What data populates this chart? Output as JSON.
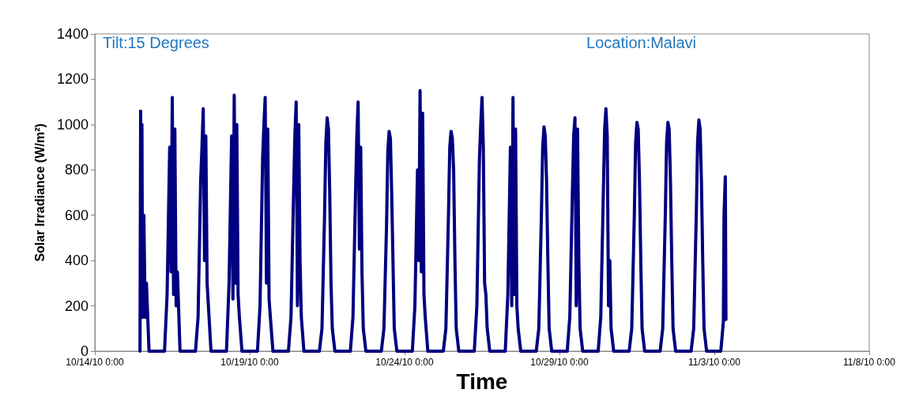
{
  "chart_data": {
    "type": "line",
    "xlabel": "Time",
    "ylabel": "Solar Irradiance (W/m²)",
    "annotations": [
      "Tilt:15 Degrees",
      "Location:Malavi"
    ],
    "xlim": [
      "--10-14T00:00",
      "--11-08T00:00"
    ],
    "xticks": [
      {
        "value": "--10-14T00:00",
        "label": "10/14/10 0:00"
      },
      {
        "value": "--10-19T00:00",
        "label": "10/19/10 0:00"
      },
      {
        "value": "--10-24T00:00",
        "label": "10/24/10 0:00"
      },
      {
        "value": "--10-29T00:00",
        "label": "10/29/10 0:00"
      },
      {
        "value": "--11-03T00:00",
        "label": "11/3/10 0:00"
      },
      {
        "value": "--11-08T00:00",
        "label": "11/8/10 0:00"
      }
    ],
    "ylim": [
      0,
      1400
    ],
    "yticks": [
      0,
      200,
      400,
      600,
      800,
      1000,
      1200,
      1400
    ],
    "grid": false,
    "marker": "none",
    "line_style": "solid",
    "series": [
      {
        "color": "#000080",
        "x": [
          "--10-15T11:00",
          "--10-15T11:30",
          "--10-15T12:00",
          "--10-15T12:30",
          "--10-15T13:00",
          "--10-15T14:00",
          "--10-15T15:00",
          "--10-15T16:00",
          "--10-15T18:00",
          "--10-16T06:00",
          "--10-16T08:00",
          "--10-16T10:00",
          "--10-16T11:00",
          "--10-16T12:00",
          "--10-16T13:00",
          "--10-16T14:00",
          "--10-16T15:00",
          "--10-16T16:00",
          "--10-16T18:00",
          "--10-17T06:00",
          "--10-17T08:00",
          "--10-17T10:00",
          "--10-17T11:00",
          "--10-17T12:00",
          "--10-17T13:00",
          "--10-17T14:00",
          "--10-17T15:00",
          "--10-17T16:00",
          "--10-17T18:00",
          "--10-18T06:00",
          "--10-18T08:00",
          "--10-18T10:00",
          "--10-18T11:00",
          "--10-18T12:00",
          "--10-18T13:00",
          "--10-18T14:00",
          "--10-18T15:00",
          "--10-18T16:00",
          "--10-18T18:00",
          "--10-19T06:00",
          "--10-19T08:00",
          "--10-19T10:00",
          "--10-19T11:00",
          "--10-19T12:00",
          "--10-19T13:00",
          "--10-19T14:00",
          "--10-19T15:00",
          "--10-19T16:00",
          "--10-19T18:00",
          "--10-20T06:00",
          "--10-20T08:00",
          "--10-20T10:00",
          "--10-20T11:00",
          "--10-20T12:00",
          "--10-20T13:00",
          "--10-20T14:00",
          "--10-20T15:00",
          "--10-20T16:00",
          "--10-20T18:00",
          "--10-21T06:00",
          "--10-21T08:00",
          "--10-21T10:00",
          "--10-21T11:00",
          "--10-21T12:00",
          "--10-21T13:00",
          "--10-21T14:00",
          "--10-21T15:00",
          "--10-21T16:00",
          "--10-21T18:00",
          "--10-22T06:00",
          "--10-22T08:00",
          "--10-22T10:00",
          "--10-22T11:00",
          "--10-22T12:00",
          "--10-22T13:00",
          "--10-22T14:00",
          "--10-22T15:00",
          "--10-22T16:00",
          "--10-22T18:00",
          "--10-23T06:00",
          "--10-23T08:00",
          "--10-23T10:00",
          "--10-23T11:00",
          "--10-23T12:00",
          "--10-23T13:00",
          "--10-23T14:00",
          "--10-23T15:00",
          "--10-23T16:00",
          "--10-23T18:00",
          "--10-24T06:00",
          "--10-24T08:00",
          "--10-24T10:00",
          "--10-24T11:00",
          "--10-24T12:00",
          "--10-24T13:00",
          "--10-24T14:00",
          "--10-24T15:00",
          "--10-24T16:00",
          "--10-24T18:00",
          "--10-25T06:00",
          "--10-25T08:00",
          "--10-25T10:00",
          "--10-25T11:00",
          "--10-25T12:00",
          "--10-25T13:00",
          "--10-25T14:00",
          "--10-25T15:00",
          "--10-25T16:00",
          "--10-25T18:00",
          "--10-26T06:00",
          "--10-26T08:00",
          "--10-26T10:00",
          "--10-26T11:00",
          "--10-26T12:00",
          "--10-26T13:00",
          "--10-26T14:00",
          "--10-26T15:00",
          "--10-26T16:00",
          "--10-26T18:00",
          "--10-27T06:00",
          "--10-27T08:00",
          "--10-27T10:00",
          "--10-27T11:00",
          "--10-27T12:00",
          "--10-27T13:00",
          "--10-27T14:00",
          "--10-27T15:00",
          "--10-27T16:00",
          "--10-27T18:00",
          "--10-28T06:00",
          "--10-28T08:00",
          "--10-28T10:00",
          "--10-28T11:00",
          "--10-28T12:00",
          "--10-28T13:00",
          "--10-28T14:00",
          "--10-28T15:00",
          "--10-28T16:00",
          "--10-28T18:00",
          "--10-29T06:00",
          "--10-29T08:00",
          "--10-29T10:00",
          "--10-29T11:00",
          "--10-29T12:00",
          "--10-29T13:00",
          "--10-29T14:00",
          "--10-29T15:00",
          "--10-29T16:00",
          "--10-29T18:00",
          "--10-30T06:00",
          "--10-30T08:00",
          "--10-30T10:00",
          "--10-30T11:00",
          "--10-30T12:00",
          "--10-30T13:00",
          "--10-30T14:00",
          "--10-30T15:00",
          "--10-30T16:00",
          "--10-30T18:00",
          "--10-31T06:00",
          "--10-31T08:00",
          "--10-31T10:00",
          "--10-31T11:00",
          "--10-31T12:00",
          "--10-31T13:00",
          "--10-31T14:00",
          "--10-31T15:00",
          "--10-31T16:00",
          "--10-31T18:00",
          "--11-01T06:00",
          "--11-01T08:00",
          "--11-01T10:00",
          "--11-01T11:00",
          "--11-01T12:00",
          "--11-01T13:00",
          "--11-01T14:00",
          "--11-01T15:00",
          "--11-01T16:00",
          "--11-01T18:00",
          "--11-02T06:00",
          "--11-02T08:00",
          "--11-02T10:00",
          "--11-02T11:00",
          "--11-02T12:00",
          "--11-02T13:00",
          "--11-02T14:00",
          "--11-02T15:00",
          "--11-02T16:00",
          "--11-02T18:00",
          "--11-03T05:00",
          "--11-03T07:00",
          "--11-03T07:30",
          "--11-03T08:30",
          "--11-03T09:00"
        ],
        "values": [
          0,
          1060,
          300,
          1000,
          150,
          600,
          150,
          300,
          0,
          0,
          250,
          900,
          350,
          1120,
          250,
          980,
          200,
          350,
          0,
          0,
          150,
          750,
          900,
          1070,
          400,
          950,
          300,
          200,
          0,
          0,
          300,
          950,
          230,
          1130,
          300,
          1000,
          250,
          150,
          0,
          0,
          200,
          850,
          1000,
          1120,
          300,
          980,
          230,
          150,
          0,
          0,
          150,
          700,
          950,
          1100,
          200,
          1000,
          400,
          150,
          0,
          0,
          100,
          600,
          920,
          1030,
          980,
          700,
          300,
          100,
          0,
          0,
          150,
          700,
          950,
          1100,
          450,
          900,
          350,
          100,
          0,
          0,
          100,
          550,
          880,
          970,
          940,
          700,
          400,
          100,
          0,
          0,
          200,
          800,
          400,
          1150,
          350,
          1050,
          250,
          150,
          0,
          0,
          100,
          600,
          900,
          970,
          940,
          800,
          400,
          100,
          0,
          0,
          200,
          850,
          1000,
          1120,
          900,
          300,
          250,
          100,
          0,
          0,
          250,
          900,
          200,
          1120,
          250,
          980,
          200,
          100,
          0,
          0,
          100,
          600,
          900,
          990,
          950,
          750,
          400,
          100,
          0,
          0,
          150,
          700,
          950,
          1030,
          200,
          980,
          400,
          100,
          0,
          0,
          150,
          700,
          980,
          1070,
          950,
          200,
          400,
          100,
          0,
          0,
          100,
          600,
          920,
          1010,
          980,
          750,
          400,
          100,
          0,
          0,
          100,
          600,
          920,
          1010,
          980,
          750,
          400,
          100,
          0,
          0,
          100,
          600,
          920,
          1020,
          980,
          750,
          400,
          100,
          0,
          0,
          130,
          600,
          770,
          140
        ]
      }
    ]
  }
}
